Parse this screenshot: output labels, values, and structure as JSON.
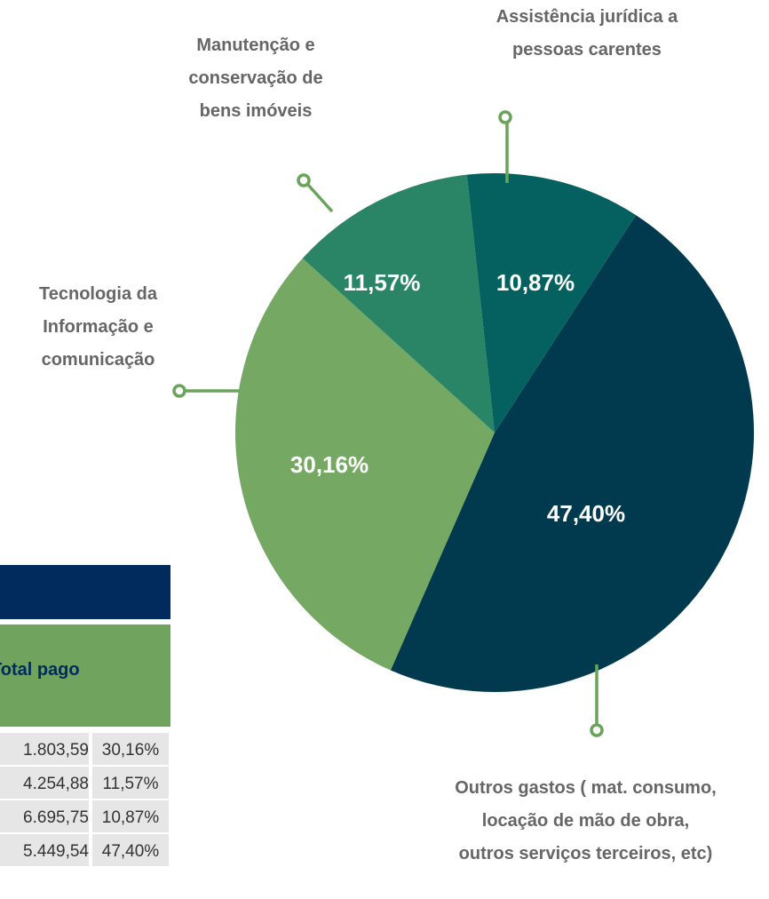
{
  "chart_data": {
    "type": "pie",
    "categories": [
      "Outros gastos ( mat. consumo, locação de mão de obra, outros serviços terceiros, etc)",
      "Tecnologia da Informação e comunicação",
      "Manutenção e conservação de bens imóveis",
      "Assistência jurídica a pessoas carentes"
    ],
    "values": [
      47.4,
      30.16,
      11.57,
      10.87
    ],
    "value_labels": [
      "47,40%",
      "30,16%",
      "11,57%",
      "10,87%"
    ],
    "colors": [
      "#013a4f",
      "#75a863",
      "#2a8566",
      "#05615f"
    ]
  },
  "table": {
    "header": "Total pago",
    "rows": [
      [
        "1.803,59",
        "30,16%"
      ],
      [
        "4.254,88",
        "11,57%"
      ],
      [
        "6.695,75",
        "10,87%"
      ],
      [
        "5.449,54",
        "47,40%"
      ]
    ]
  }
}
